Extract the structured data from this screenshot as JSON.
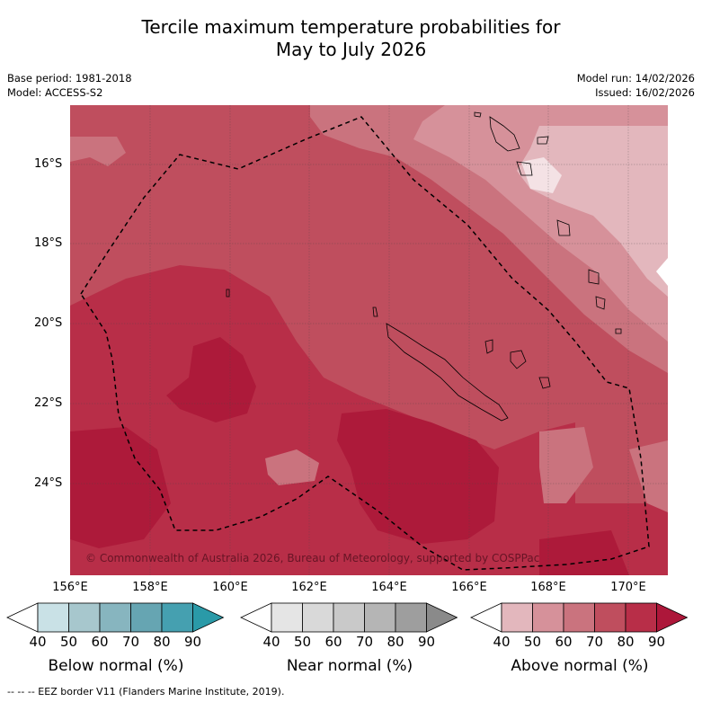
{
  "title_line1": "Tercile maximum temperature probabilities for",
  "title_line2": "May to July 2026",
  "base_period": "Base period: 1981-2018",
  "model": "Model: ACCESS-S2",
  "model_run": "Model run: 14/02/2026",
  "issued": "Issued: 16/02/2026",
  "copyright": "© Commonwealth of Australia 2026, Bureau of Meteorology, supported by COSPPac",
  "lat_ticks": [
    "16°S",
    "18°S",
    "20°S",
    "22°S",
    "24°S"
  ],
  "lon_ticks": [
    "156°E",
    "158°E",
    "160°E",
    "162°E",
    "164°E",
    "166°E",
    "168°E",
    "170°E"
  ],
  "colorbars": [
    {
      "title": "Below normal (%)",
      "labels": [
        "40",
        "50",
        "60",
        "70",
        "80",
        "90"
      ],
      "colors": [
        "#ffffff",
        "#c9e1e6",
        "#a7c7cd",
        "#87b5bf",
        "#66a5b2",
        "#45a0b0",
        "#2a9aa8"
      ]
    },
    {
      "title": "Near normal (%)",
      "labels": [
        "40",
        "50",
        "60",
        "70",
        "80",
        "90"
      ],
      "colors": [
        "#ffffff",
        "#e5e5e5",
        "#d9d9d9",
        "#c9c9c9",
        "#b5b5b5",
        "#9e9e9e",
        "#8a8a8a"
      ]
    },
    {
      "title": "Above normal (%)",
      "labels": [
        "40",
        "50",
        "60",
        "70",
        "80",
        "90"
      ],
      "colors": [
        "#ffffff",
        "#e3b7bd",
        "#d6919a",
        "#ca737e",
        "#bf4e5e",
        "#b82e48",
        "#ad173a"
      ]
    }
  ],
  "footnote": "--  --  -- EEZ border V11 (Flanders Marine Institute, 2019).",
  "colors": {
    "cat50": "#e3b7bd",
    "cat60": "#d6919a",
    "cat70": "#ca737e",
    "cat80": "#bf4e5e",
    "cat90": "#b01e3c"
  }
}
